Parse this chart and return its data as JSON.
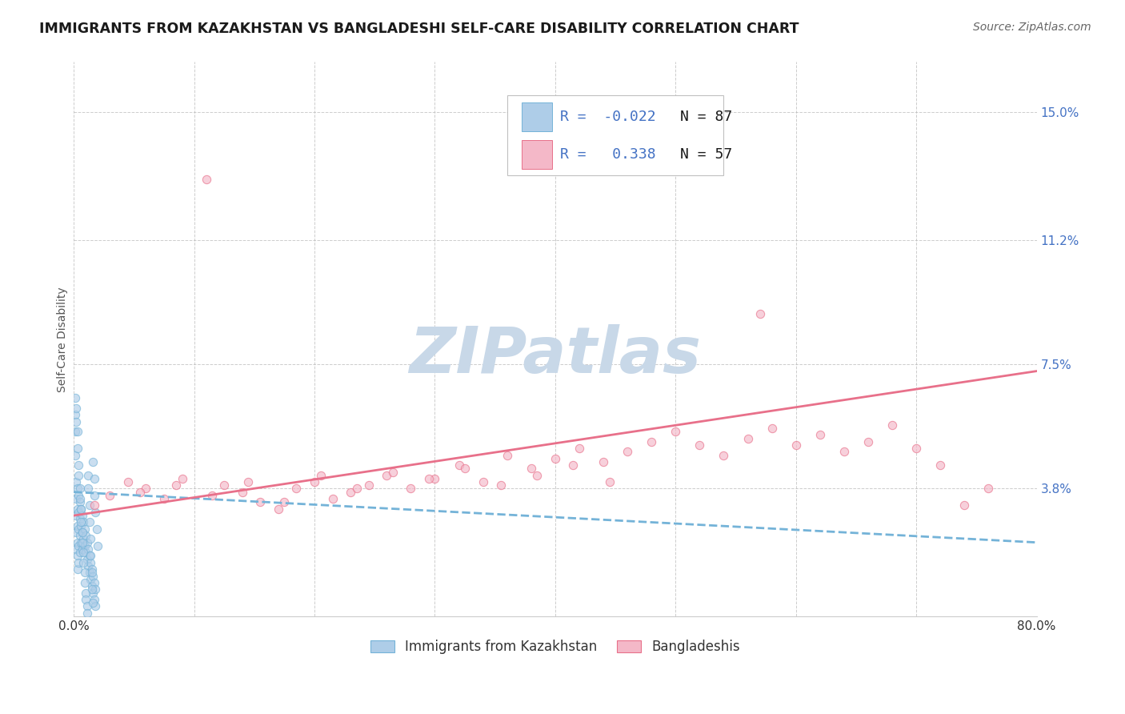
{
  "title": "IMMIGRANTS FROM KAZAKHSTAN VS BANGLADESHI SELF-CARE DISABILITY CORRELATION CHART",
  "source": "Source: ZipAtlas.com",
  "ylabel": "Self-Care Disability",
  "watermark": "ZIPatlas",
  "legend_entries": [
    {
      "label": "Immigrants from Kazakhstan",
      "R": -0.022,
      "N": 87
    },
    {
      "label": "Bangladeshis",
      "R": 0.338,
      "N": 57
    }
  ],
  "xmin": 0.0,
  "xmax": 0.8,
  "ymin": 0.0,
  "ymax": 0.165,
  "yticks": [
    0.0,
    0.038,
    0.075,
    0.112,
    0.15
  ],
  "ytick_labels": [
    "",
    "3.8%",
    "7.5%",
    "11.2%",
    "15.0%"
  ],
  "xticks": [
    0.0,
    0.1,
    0.2,
    0.3,
    0.4,
    0.5,
    0.6,
    0.7,
    0.8
  ],
  "xtick_labels": [
    "0.0%",
    "",
    "",
    "",
    "",
    "",
    "",
    "",
    "80.0%"
  ],
  "blue_scatter_x": [
    0.001,
    0.001,
    0.002,
    0.002,
    0.002,
    0.002,
    0.002,
    0.003,
    0.003,
    0.003,
    0.003,
    0.003,
    0.003,
    0.004,
    0.004,
    0.004,
    0.004,
    0.004,
    0.005,
    0.005,
    0.005,
    0.005,
    0.006,
    0.006,
    0.006,
    0.007,
    0.007,
    0.007,
    0.008,
    0.008,
    0.009,
    0.009,
    0.01,
    0.01,
    0.011,
    0.011,
    0.012,
    0.012,
    0.013,
    0.013,
    0.014,
    0.014,
    0.015,
    0.015,
    0.016,
    0.016,
    0.017,
    0.017,
    0.018,
    0.018,
    0.001,
    0.001,
    0.002,
    0.002,
    0.003,
    0.003,
    0.004,
    0.004,
    0.005,
    0.005,
    0.006,
    0.006,
    0.007,
    0.007,
    0.008,
    0.008,
    0.009,
    0.009,
    0.01,
    0.01,
    0.011,
    0.011,
    0.012,
    0.012,
    0.013,
    0.013,
    0.014,
    0.014,
    0.015,
    0.015,
    0.016,
    0.016,
    0.017,
    0.017,
    0.018,
    0.019,
    0.02
  ],
  "blue_scatter_y": [
    0.055,
    0.048,
    0.04,
    0.035,
    0.03,
    0.025,
    0.02,
    0.038,
    0.032,
    0.027,
    0.022,
    0.018,
    0.014,
    0.036,
    0.031,
    0.026,
    0.021,
    0.016,
    0.034,
    0.029,
    0.024,
    0.019,
    0.032,
    0.027,
    0.022,
    0.03,
    0.025,
    0.02,
    0.028,
    0.023,
    0.026,
    0.021,
    0.024,
    0.019,
    0.022,
    0.017,
    0.02,
    0.015,
    0.018,
    0.013,
    0.016,
    0.011,
    0.014,
    0.009,
    0.012,
    0.007,
    0.01,
    0.005,
    0.008,
    0.003,
    0.06,
    0.065,
    0.058,
    0.062,
    0.055,
    0.05,
    0.045,
    0.042,
    0.038,
    0.035,
    0.032,
    0.028,
    0.025,
    0.022,
    0.019,
    0.016,
    0.013,
    0.01,
    0.007,
    0.005,
    0.003,
    0.001,
    0.042,
    0.038,
    0.033,
    0.028,
    0.023,
    0.018,
    0.013,
    0.008,
    0.004,
    0.046,
    0.041,
    0.036,
    0.031,
    0.026,
    0.021
  ],
  "pink_scatter_x": [
    0.017,
    0.03,
    0.045,
    0.06,
    0.075,
    0.09,
    0.11,
    0.125,
    0.14,
    0.155,
    0.17,
    0.185,
    0.2,
    0.215,
    0.23,
    0.245,
    0.26,
    0.28,
    0.3,
    0.32,
    0.34,
    0.36,
    0.38,
    0.4,
    0.42,
    0.44,
    0.46,
    0.48,
    0.5,
    0.52,
    0.54,
    0.56,
    0.58,
    0.6,
    0.62,
    0.64,
    0.66,
    0.68,
    0.7,
    0.72,
    0.74,
    0.76,
    0.055,
    0.085,
    0.115,
    0.145,
    0.175,
    0.205,
    0.235,
    0.265,
    0.295,
    0.325,
    0.355,
    0.385,
    0.415,
    0.445,
    0.57
  ],
  "pink_scatter_y": [
    0.033,
    0.036,
    0.04,
    0.038,
    0.035,
    0.041,
    0.13,
    0.039,
    0.037,
    0.034,
    0.032,
    0.038,
    0.04,
    0.035,
    0.037,
    0.039,
    0.042,
    0.038,
    0.041,
    0.045,
    0.04,
    0.048,
    0.044,
    0.047,
    0.05,
    0.046,
    0.049,
    0.052,
    0.055,
    0.051,
    0.048,
    0.053,
    0.056,
    0.051,
    0.054,
    0.049,
    0.052,
    0.057,
    0.05,
    0.045,
    0.033,
    0.038,
    0.037,
    0.039,
    0.036,
    0.04,
    0.034,
    0.042,
    0.038,
    0.043,
    0.041,
    0.044,
    0.039,
    0.042,
    0.045,
    0.04,
    0.09
  ],
  "blue_line_x": [
    0.0,
    0.8
  ],
  "blue_line_y": [
    0.037,
    0.022
  ],
  "pink_line_x": [
    0.0,
    0.8
  ],
  "pink_line_y": [
    0.03,
    0.073
  ],
  "blue_line_color": "#74b3d8",
  "pink_line_color": "#e8708a",
  "blue_dot_face": "#aecde8",
  "blue_dot_edge": "#74b3d8",
  "pink_dot_face": "#f4b8c8",
  "pink_dot_edge": "#e8708a",
  "grid_color": "#b8b8b8",
  "watermark_color": "#c8d8e8",
  "title_color": "#1a1a1a",
  "axis_label_color": "#555555",
  "tick_label_color_right": "#4472c4",
  "legend_text_color": "#4472c4",
  "legend_n_color": "#1a1a1a",
  "background_color": "#ffffff",
  "title_fontsize": 12.5,
  "source_fontsize": 10,
  "ylabel_fontsize": 10,
  "tick_fontsize": 11,
  "legend_fontsize": 13,
  "watermark_fontsize": 58,
  "scatter_size": 55,
  "scatter_alpha": 0.65,
  "line_width": 2.0
}
